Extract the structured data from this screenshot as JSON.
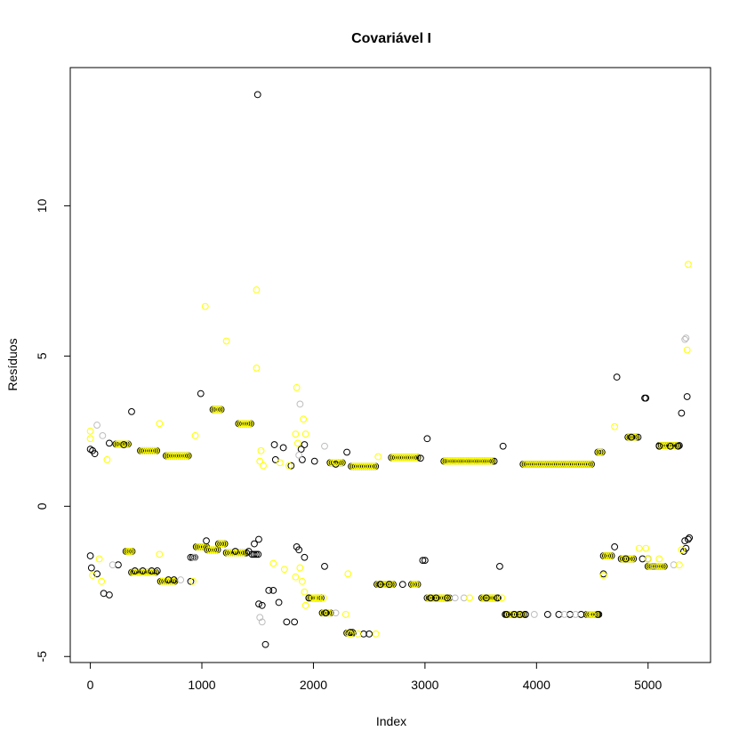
{
  "chart_data": {
    "type": "scatter",
    "title": "Covariável I",
    "xlabel": "Index",
    "ylabel": "Resíduos",
    "xlim": [
      -180,
      5560
    ],
    "ylim": [
      -5.2,
      14.6
    ],
    "xticks": [
      0,
      1000,
      2000,
      3000,
      4000,
      5000
    ],
    "yticks": [
      -5,
      0,
      5,
      10
    ],
    "colors": {
      "s1": "#000000",
      "s2": "#bebebe",
      "s3": "#ffff00"
    },
    "point_shape": "open-circle",
    "series": [
      {
        "color": "#000000",
        "points": [
          [
            0,
            1.9
          ],
          [
            20,
            1.85
          ],
          [
            40,
            1.75
          ],
          [
            0,
            -1.65
          ],
          [
            10,
            -2.05
          ],
          [
            60,
            -2.25
          ],
          [
            120,
            -2.9
          ],
          [
            170,
            -2.95
          ],
          [
            170,
            2.1
          ],
          [
            250,
            -1.95
          ],
          [
            300,
            2.05
          ],
          [
            370,
            3.15
          ],
          [
            400,
            -2.15
          ],
          [
            470,
            -2.15
          ],
          [
            550,
            -2.15
          ],
          [
            600,
            -2.15
          ],
          [
            700,
            -2.45
          ],
          [
            750,
            -2.45
          ],
          [
            900,
            -2.5
          ],
          [
            990,
            3.75
          ],
          [
            1040,
            -1.15
          ],
          [
            1300,
            -1.5
          ],
          [
            1420,
            -1.5
          ],
          [
            1470,
            -1.25
          ],
          [
            1500,
            13.7
          ],
          [
            1510,
            -1.1
          ],
          [
            1510,
            -3.25
          ],
          [
            1540,
            -3.3
          ],
          [
            1570,
            -4.6
          ],
          [
            1600,
            -2.8
          ],
          [
            1640,
            -2.8
          ],
          [
            1650,
            2.05
          ],
          [
            1660,
            1.55
          ],
          [
            1690,
            -3.2
          ],
          [
            1730,
            1.95
          ],
          [
            1760,
            -3.85
          ],
          [
            1800,
            1.35
          ],
          [
            1830,
            -3.85
          ],
          [
            1850,
            -1.35
          ],
          [
            1870,
            -1.45
          ],
          [
            1890,
            1.9
          ],
          [
            1920,
            2.05
          ],
          [
            1900,
            1.55
          ],
          [
            1920,
            -1.7
          ],
          [
            1960,
            -3.05
          ],
          [
            2010,
            1.5
          ],
          [
            2100,
            -2.0
          ],
          [
            2110,
            -3.55
          ],
          [
            2200,
            1.4
          ],
          [
            2300,
            1.8
          ],
          [
            2330,
            -4.2
          ],
          [
            2350,
            -4.2
          ],
          [
            2450,
            -4.25
          ],
          [
            2500,
            -4.25
          ],
          [
            2600,
            -2.6
          ],
          [
            2680,
            -2.6
          ],
          [
            2800,
            -2.6
          ],
          [
            2960,
            1.6
          ],
          [
            2980,
            -1.8
          ],
          [
            3000,
            -1.8
          ],
          [
            3020,
            2.25
          ],
          [
            3050,
            -3.05
          ],
          [
            3100,
            -3.05
          ],
          [
            3200,
            -3.05
          ],
          [
            3550,
            -3.05
          ],
          [
            3650,
            -3.05
          ],
          [
            3670,
            -2.0
          ],
          [
            3700,
            2.0
          ],
          [
            3730,
            -3.6
          ],
          [
            3800,
            -3.6
          ],
          [
            3850,
            -3.6
          ],
          [
            3900,
            -3.6
          ],
          [
            4100,
            -3.6
          ],
          [
            4200,
            -3.6
          ],
          [
            4300,
            -3.6
          ],
          [
            4400,
            -3.6
          ],
          [
            4550,
            -3.6
          ],
          [
            4600,
            -2.25
          ],
          [
            4700,
            -1.35
          ],
          [
            4720,
            4.3
          ],
          [
            4800,
            -1.75
          ],
          [
            4850,
            2.3
          ],
          [
            4950,
            -1.75
          ],
          [
            4970,
            3.6
          ],
          [
            4980,
            3.6
          ],
          [
            5000,
            -1.75
          ],
          [
            5050,
            -2.0
          ],
          [
            5100,
            2.0
          ],
          [
            5200,
            2.0
          ],
          [
            5270,
            2.0
          ],
          [
            5300,
            3.1
          ],
          [
            5320,
            -1.5
          ],
          [
            5330,
            -1.15
          ],
          [
            5340,
            -1.4
          ],
          [
            5350,
            3.65
          ],
          [
            5360,
            -1.1
          ],
          [
            5370,
            -1.05
          ]
        ]
      },
      {
        "color": "#bebebe",
        "points": [
          [
            60,
            2.7
          ],
          [
            110,
            2.35
          ],
          [
            200,
            -1.95
          ],
          [
            810,
            -2.45
          ],
          [
            930,
            -1.7
          ],
          [
            1520,
            -3.7
          ],
          [
            1540,
            -3.85
          ],
          [
            1870,
            1.7
          ],
          [
            1880,
            3.4
          ],
          [
            2100,
            2.0
          ],
          [
            2200,
            -3.55
          ],
          [
            3270,
            -3.05
          ],
          [
            3350,
            -3.05
          ],
          [
            3980,
            -3.6
          ],
          [
            4250,
            -3.6
          ],
          [
            4350,
            -3.6
          ],
          [
            5050,
            -2.0
          ],
          [
            5230,
            -1.95
          ],
          [
            5330,
            5.55
          ],
          [
            5340,
            5.6
          ]
        ]
      },
      {
        "color": "#ffff00",
        "points": [
          [
            0,
            2.5
          ],
          [
            0,
            2.25
          ],
          [
            20,
            -2.3
          ],
          [
            80,
            -1.75
          ],
          [
            100,
            -2.5
          ],
          [
            150,
            1.55
          ],
          [
            350,
            -1.5
          ],
          [
            620,
            2.75
          ],
          [
            620,
            -1.6
          ],
          [
            920,
            -2.5
          ],
          [
            940,
            2.35
          ],
          [
            1030,
            6.65
          ],
          [
            1220,
            5.5
          ],
          [
            1490,
            7.2
          ],
          [
            1490,
            4.6
          ],
          [
            1520,
            1.5
          ],
          [
            1530,
            1.85
          ],
          [
            1550,
            1.35
          ],
          [
            1640,
            -1.9
          ],
          [
            1700,
            1.45
          ],
          [
            1740,
            -2.1
          ],
          [
            1780,
            1.35
          ],
          [
            1840,
            -2.35
          ],
          [
            1840,
            2.4
          ],
          [
            1850,
            3.95
          ],
          [
            1860,
            2.1
          ],
          [
            1880,
            -2.05
          ],
          [
            1900,
            -2.5
          ],
          [
            1910,
            2.9
          ],
          [
            1920,
            -2.85
          ],
          [
            1930,
            2.4
          ],
          [
            1930,
            -3.3
          ],
          [
            2000,
            -3.05
          ],
          [
            2090,
            -3.05
          ],
          [
            2200,
            1.45
          ],
          [
            2290,
            -3.6
          ],
          [
            2310,
            -2.25
          ],
          [
            2330,
            -4.25
          ],
          [
            2400,
            -4.25
          ],
          [
            2560,
            -4.25
          ],
          [
            2580,
            1.65
          ],
          [
            2910,
            -2.6
          ],
          [
            3400,
            -3.05
          ],
          [
            3690,
            -3.05
          ],
          [
            4500,
            -3.6
          ],
          [
            4600,
            -2.3
          ],
          [
            4700,
            2.65
          ],
          [
            4920,
            -1.4
          ],
          [
            4980,
            -1.4
          ],
          [
            5000,
            -1.75
          ],
          [
            5100,
            -1.75
          ],
          [
            5280,
            -1.95
          ],
          [
            5300,
            -1.45
          ],
          [
            5350,
            5.2
          ],
          [
            5360,
            8.05
          ]
        ]
      }
    ],
    "bands": [
      {
        "color": "#000000",
        "y": 2.07,
        "x_from": 230,
        "x_to": 340,
        "step": 18
      },
      {
        "color": "#ffff00",
        "y": 2.07,
        "x_from": 240,
        "x_to": 330,
        "step": 18
      },
      {
        "color": "#000000",
        "y": 1.85,
        "x_from": 450,
        "x_to": 600,
        "step": 18
      },
      {
        "color": "#ffff00",
        "y": 1.85,
        "x_from": 460,
        "x_to": 590,
        "step": 18
      },
      {
        "color": "#000000",
        "y": 1.68,
        "x_from": 680,
        "x_to": 880,
        "step": 18
      },
      {
        "color": "#ffff00",
        "y": 1.68,
        "x_from": 690,
        "x_to": 870,
        "step": 18
      },
      {
        "color": "#000000",
        "y": 3.22,
        "x_from": 1100,
        "x_to": 1180,
        "step": 18
      },
      {
        "color": "#ffff00",
        "y": 3.22,
        "x_from": 1110,
        "x_to": 1170,
        "step": 18
      },
      {
        "color": "#000000",
        "y": 2.75,
        "x_from": 1330,
        "x_to": 1440,
        "step": 18
      },
      {
        "color": "#ffff00",
        "y": 2.75,
        "x_from": 1340,
        "x_to": 1430,
        "step": 18
      },
      {
        "color": "#000000",
        "y": 1.45,
        "x_from": 2150,
        "x_to": 2260,
        "step": 18
      },
      {
        "color": "#ffff00",
        "y": 1.45,
        "x_from": 2160,
        "x_to": 2250,
        "step": 18
      },
      {
        "color": "#000000",
        "y": 1.33,
        "x_from": 2340,
        "x_to": 2560,
        "step": 18
      },
      {
        "color": "#ffff00",
        "y": 1.33,
        "x_from": 2350,
        "x_to": 2550,
        "step": 18
      },
      {
        "color": "#000000",
        "y": 1.62,
        "x_from": 2700,
        "x_to": 2950,
        "step": 18
      },
      {
        "color": "#ffff00",
        "y": 1.62,
        "x_from": 2710,
        "x_to": 2940,
        "step": 18
      },
      {
        "color": "#000000",
        "y": 1.5,
        "x_from": 3170,
        "x_to": 3620,
        "step": 18
      },
      {
        "color": "#ffff00",
        "y": 1.5,
        "x_from": 3180,
        "x_to": 3610,
        "step": 18
      },
      {
        "color": "#000000",
        "y": 1.4,
        "x_from": 3880,
        "x_to": 4500,
        "step": 18
      },
      {
        "color": "#ffff00",
        "y": 1.4,
        "x_from": 3890,
        "x_to": 4490,
        "step": 18
      },
      {
        "color": "#000000",
        "y": 2.02,
        "x_from": 5100,
        "x_to": 5280,
        "step": 18
      },
      {
        "color": "#ffff00",
        "y": 2.02,
        "x_from": 5110,
        "x_to": 5270,
        "step": 18
      },
      {
        "color": "#000000",
        "y": -1.5,
        "x_from": 320,
        "x_to": 380,
        "step": 18
      },
      {
        "color": "#ffff00",
        "y": -1.5,
        "x_from": 330,
        "x_to": 370,
        "step": 18
      },
      {
        "color": "#000000",
        "y": -2.2,
        "x_from": 370,
        "x_to": 600,
        "step": 18
      },
      {
        "color": "#ffff00",
        "y": -2.2,
        "x_from": 380,
        "x_to": 590,
        "step": 18
      },
      {
        "color": "#000000",
        "y": -2.5,
        "x_from": 630,
        "x_to": 760,
        "step": 18
      },
      {
        "color": "#ffff00",
        "y": -2.5,
        "x_from": 640,
        "x_to": 750,
        "step": 18
      },
      {
        "color": "#000000",
        "y": -1.35,
        "x_from": 950,
        "x_to": 1050,
        "step": 18
      },
      {
        "color": "#ffff00",
        "y": -1.35,
        "x_from": 960,
        "x_to": 1040,
        "step": 18
      },
      {
        "color": "#000000",
        "y": -1.45,
        "x_from": 1050,
        "x_to": 1150,
        "step": 18
      },
      {
        "color": "#ffff00",
        "y": -1.45,
        "x_from": 1060,
        "x_to": 1140,
        "step": 18
      },
      {
        "color": "#000000",
        "y": -1.25,
        "x_from": 1150,
        "x_to": 1210,
        "step": 18
      },
      {
        "color": "#ffff00",
        "y": -1.25,
        "x_from": 1160,
        "x_to": 1200,
        "step": 18
      },
      {
        "color": "#000000",
        "y": -1.55,
        "x_from": 1220,
        "x_to": 1400,
        "step": 18
      },
      {
        "color": "#ffff00",
        "y": -1.55,
        "x_from": 1230,
        "x_to": 1390,
        "step": 18
      },
      {
        "color": "#000000",
        "y": -3.05,
        "x_from": 1960,
        "x_to": 2080,
        "step": 18
      },
      {
        "color": "#ffff00",
        "y": -3.05,
        "x_from": 1970,
        "x_to": 2070,
        "step": 18
      },
      {
        "color": "#000000",
        "y": -3.55,
        "x_from": 2080,
        "x_to": 2160,
        "step": 18
      },
      {
        "color": "#ffff00",
        "y": -3.55,
        "x_from": 2090,
        "x_to": 2150,
        "step": 18
      },
      {
        "color": "#000000",
        "y": -4.22,
        "x_from": 2300,
        "x_to": 2360,
        "step": 18
      },
      {
        "color": "#ffff00",
        "y": -4.22,
        "x_from": 2310,
        "x_to": 2350,
        "step": 18
      },
      {
        "color": "#000000",
        "y": -2.6,
        "x_from": 2570,
        "x_to": 2720,
        "step": 18
      },
      {
        "color": "#ffff00",
        "y": -2.6,
        "x_from": 2580,
        "x_to": 2710,
        "step": 18
      },
      {
        "color": "#000000",
        "y": -2.6,
        "x_from": 2880,
        "x_to": 2950,
        "step": 18
      },
      {
        "color": "#ffff00",
        "y": -2.6,
        "x_from": 2890,
        "x_to": 2940,
        "step": 18
      },
      {
        "color": "#000000",
        "y": -3.05,
        "x_from": 3020,
        "x_to": 3230,
        "step": 18
      },
      {
        "color": "#ffff00",
        "y": -3.05,
        "x_from": 3030,
        "x_to": 3220,
        "step": 18
      },
      {
        "color": "#000000",
        "y": -3.05,
        "x_from": 3510,
        "x_to": 3660,
        "step": 18
      },
      {
        "color": "#ffff00",
        "y": -3.05,
        "x_from": 3520,
        "x_to": 3650,
        "step": 18
      },
      {
        "color": "#000000",
        "y": -3.6,
        "x_from": 3720,
        "x_to": 3900,
        "step": 18
      },
      {
        "color": "#ffff00",
        "y": -3.6,
        "x_from": 3730,
        "x_to": 3890,
        "step": 18
      },
      {
        "color": "#000000",
        "y": -3.6,
        "x_from": 4450,
        "x_to": 4560,
        "step": 18
      },
      {
        "color": "#ffff00",
        "y": -3.6,
        "x_from": 4460,
        "x_to": 4550,
        "step": 18
      },
      {
        "color": "#000000",
        "y": -1.65,
        "x_from": 4600,
        "x_to": 4680,
        "step": 18
      },
      {
        "color": "#ffff00",
        "y": -1.65,
        "x_from": 4610,
        "x_to": 4670,
        "step": 18
      },
      {
        "color": "#000000",
        "y": -1.75,
        "x_from": 4760,
        "x_to": 4880,
        "step": 18
      },
      {
        "color": "#ffff00",
        "y": -1.75,
        "x_from": 4770,
        "x_to": 4870,
        "step": 18
      },
      {
        "color": "#000000",
        "y": 2.3,
        "x_from": 4820,
        "x_to": 4910,
        "step": 18
      },
      {
        "color": "#ffff00",
        "y": 2.3,
        "x_from": 4830,
        "x_to": 4900,
        "step": 18
      },
      {
        "color": "#000000",
        "y": -2.0,
        "x_from": 5000,
        "x_to": 5160,
        "step": 18
      },
      {
        "color": "#ffff00",
        "y": -2.0,
        "x_from": 5010,
        "x_to": 5150,
        "step": 18
      },
      {
        "color": "#000000",
        "y": 1.8,
        "x_from": 4550,
        "x_to": 4600,
        "step": 18
      },
      {
        "color": "#ffff00",
        "y": 1.8,
        "x_from": 4560,
        "x_to": 4590,
        "step": 18
      },
      {
        "color": "#000000",
        "y": -1.6,
        "x_from": 1450,
        "x_to": 1510,
        "step": 18
      },
      {
        "color": "#000000",
        "y": -1.7,
        "x_from": 900,
        "x_to": 940,
        "step": 18
      }
    ]
  }
}
